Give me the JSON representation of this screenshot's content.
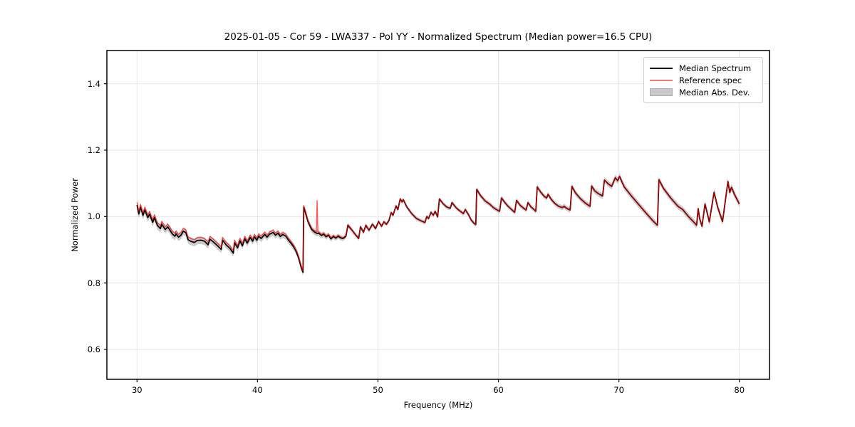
{
  "figure": {
    "title": "2025-01-05 - Cor 59 - LWA337 - Pol YY - Normalized Spectrum (Median power=16.5 CPU)"
  },
  "chart_data": {
    "type": "line",
    "title": "2025-01-05 - Cor 59 - LWA337 - Pol YY - Normalized Spectrum (Median power=16.5 CPU)",
    "xlabel": "Frequency (MHz)",
    "ylabel": "Normalized Power",
    "xlim": [
      27.5,
      82.5
    ],
    "ylim": [
      0.51,
      1.5
    ],
    "xticks": [
      30,
      40,
      50,
      60,
      70,
      80
    ],
    "yticks": [
      0.6,
      0.8,
      1.0,
      1.2,
      1.4
    ],
    "grid": true,
    "background": "#ffffff",
    "grid_color": "#e6e6e6",
    "legend_position": "upper right",
    "legend_items": [
      {
        "label": "Median Spectrum",
        "color": "#000000",
        "kind": "line"
      },
      {
        "label": "Reference spec",
        "color": "#f47a72",
        "kind": "line"
      },
      {
        "label": "Median Abs. Dev.",
        "color": "#c9c9c9",
        "kind": "patch"
      }
    ],
    "series": [
      {
        "name": "Median Spectrum",
        "color": "#000000",
        "points": [
          [
            30.0,
            1.035
          ],
          [
            30.15,
            1.008
          ],
          [
            30.3,
            1.028
          ],
          [
            30.5,
            1.004
          ],
          [
            30.65,
            1.02
          ],
          [
            30.9,
            0.997
          ],
          [
            31.05,
            1.007
          ],
          [
            31.3,
            0.983
          ],
          [
            31.45,
            0.997
          ],
          [
            31.7,
            0.973
          ],
          [
            31.95,
            0.964
          ],
          [
            32.05,
            0.977
          ],
          [
            32.35,
            0.961
          ],
          [
            32.55,
            0.969
          ],
          [
            32.95,
            0.947
          ],
          [
            33.15,
            0.941
          ],
          [
            33.25,
            0.948
          ],
          [
            33.45,
            0.938
          ],
          [
            33.65,
            0.944
          ],
          [
            33.85,
            0.956
          ],
          [
            34.05,
            0.952
          ],
          [
            34.25,
            0.93
          ],
          [
            34.45,
            0.926
          ],
          [
            34.75,
            0.922
          ],
          [
            35.0,
            0.928
          ],
          [
            35.3,
            0.929
          ],
          [
            35.6,
            0.926
          ],
          [
            35.9,
            0.915
          ],
          [
            36.05,
            0.932
          ],
          [
            36.3,
            0.925
          ],
          [
            36.6,
            0.915
          ],
          [
            37.0,
            0.901
          ],
          [
            37.1,
            0.929
          ],
          [
            37.4,
            0.915
          ],
          [
            37.7,
            0.905
          ],
          [
            38.0,
            0.89
          ],
          [
            38.1,
            0.921
          ],
          [
            38.35,
            0.906
          ],
          [
            38.55,
            0.927
          ],
          [
            38.75,
            0.912
          ],
          [
            38.95,
            0.933
          ],
          [
            39.15,
            0.92
          ],
          [
            39.4,
            0.937
          ],
          [
            39.6,
            0.926
          ],
          [
            39.75,
            0.939
          ],
          [
            39.95,
            0.929
          ],
          [
            40.1,
            0.941
          ],
          [
            40.3,
            0.934
          ],
          [
            40.6,
            0.946
          ],
          [
            40.8,
            0.938
          ],
          [
            41.0,
            0.947
          ],
          [
            41.3,
            0.952
          ],
          [
            41.5,
            0.944
          ],
          [
            41.7,
            0.95
          ],
          [
            41.9,
            0.94
          ],
          [
            42.1,
            0.946
          ],
          [
            42.35,
            0.941
          ],
          [
            42.6,
            0.928
          ],
          [
            42.8,
            0.919
          ],
          [
            43.0,
            0.909
          ],
          [
            43.2,
            0.896
          ],
          [
            43.4,
            0.877
          ],
          [
            43.62,
            0.848
          ],
          [
            43.78,
            0.832
          ],
          [
            43.84,
            1.028
          ],
          [
            44.0,
            1.01
          ],
          [
            44.2,
            0.984
          ],
          [
            44.5,
            0.961
          ],
          [
            44.75,
            0.953
          ],
          [
            44.95,
            0.949
          ],
          [
            45.1,
            0.95
          ],
          [
            45.3,
            0.943
          ],
          [
            45.5,
            0.947
          ],
          [
            45.7,
            0.939
          ],
          [
            45.9,
            0.944
          ],
          [
            46.1,
            0.933
          ],
          [
            46.3,
            0.94
          ],
          [
            46.5,
            0.935
          ],
          [
            46.7,
            0.941
          ],
          [
            46.9,
            0.936
          ],
          [
            47.1,
            0.934
          ],
          [
            47.35,
            0.941
          ],
          [
            47.5,
            0.974
          ],
          [
            47.8,
            0.961
          ],
          [
            48.1,
            0.947
          ],
          [
            48.4,
            0.934
          ],
          [
            48.55,
            0.969
          ],
          [
            48.8,
            0.953
          ],
          [
            49.0,
            0.974
          ],
          [
            49.25,
            0.959
          ],
          [
            49.55,
            0.977
          ],
          [
            49.8,
            0.964
          ],
          [
            50.05,
            0.985
          ],
          [
            50.3,
            0.971
          ],
          [
            50.5,
            0.984
          ],
          [
            50.7,
            0.977
          ],
          [
            50.9,
            0.987
          ],
          [
            51.1,
            1.012
          ],
          [
            51.25,
            1.004
          ],
          [
            51.5,
            1.032
          ],
          [
            51.65,
            1.021
          ],
          [
            51.85,
            1.053
          ],
          [
            52.0,
            1.044
          ],
          [
            52.1,
            1.051
          ],
          [
            52.4,
            1.029
          ],
          [
            52.8,
            1.009
          ],
          [
            53.2,
            0.994
          ],
          [
            53.6,
            0.987
          ],
          [
            53.9,
            0.982
          ],
          [
            54.05,
            1.0
          ],
          [
            54.2,
            0.994
          ],
          [
            54.4,
            1.013
          ],
          [
            54.6,
            1.004
          ],
          [
            54.75,
            1.016
          ],
          [
            54.95,
            0.999
          ],
          [
            55.1,
            1.053
          ],
          [
            55.4,
            1.039
          ],
          [
            55.7,
            1.029
          ],
          [
            56.0,
            1.025
          ],
          [
            56.15,
            1.042
          ],
          [
            56.5,
            1.026
          ],
          [
            56.8,
            1.017
          ],
          [
            57.1,
            1.009
          ],
          [
            57.25,
            1.021
          ],
          [
            57.5,
            1.007
          ],
          [
            57.75,
            0.989
          ],
          [
            58.0,
            0.979
          ],
          [
            58.12,
            0.976
          ],
          [
            58.2,
            1.082
          ],
          [
            58.5,
            1.064
          ],
          [
            58.9,
            1.047
          ],
          [
            59.3,
            1.037
          ],
          [
            59.55,
            1.028
          ],
          [
            59.8,
            1.022
          ],
          [
            60.1,
            1.016
          ],
          [
            60.25,
            1.056
          ],
          [
            60.5,
            1.044
          ],
          [
            60.8,
            1.031
          ],
          [
            61.1,
            1.021
          ],
          [
            61.35,
            1.013
          ],
          [
            61.5,
            1.049
          ],
          [
            61.8,
            1.034
          ],
          [
            62.1,
            1.025
          ],
          [
            62.3,
            1.02
          ],
          [
            62.45,
            1.042
          ],
          [
            62.7,
            1.029
          ],
          [
            62.9,
            1.023
          ],
          [
            63.1,
            1.016
          ],
          [
            63.22,
            1.089
          ],
          [
            63.5,
            1.074
          ],
          [
            63.8,
            1.061
          ],
          [
            64.0,
            1.056
          ],
          [
            64.12,
            1.067
          ],
          [
            64.4,
            1.051
          ],
          [
            64.7,
            1.039
          ],
          [
            65.0,
            1.031
          ],
          [
            65.3,
            1.027
          ],
          [
            65.45,
            1.031
          ],
          [
            65.7,
            1.024
          ],
          [
            65.95,
            1.02
          ],
          [
            66.1,
            1.091
          ],
          [
            66.4,
            1.071
          ],
          [
            66.8,
            1.054
          ],
          [
            67.2,
            1.041
          ],
          [
            67.6,
            1.031
          ],
          [
            67.73,
            1.092
          ],
          [
            68.0,
            1.077
          ],
          [
            68.35,
            1.068
          ],
          [
            68.65,
            1.062
          ],
          [
            68.8,
            1.11
          ],
          [
            69.1,
            1.099
          ],
          [
            69.4,
            1.091
          ],
          [
            69.7,
            1.117
          ],
          [
            69.9,
            1.108
          ],
          [
            70.05,
            1.121
          ],
          [
            70.45,
            1.089
          ],
          [
            71.0,
            1.064
          ],
          [
            71.6,
            1.038
          ],
          [
            72.2,
            1.013
          ],
          [
            72.8,
            0.988
          ],
          [
            73.2,
            0.974
          ],
          [
            73.32,
            1.111
          ],
          [
            73.7,
            1.085
          ],
          [
            74.3,
            1.056
          ],
          [
            74.9,
            1.031
          ],
          [
            75.3,
            1.021
          ],
          [
            75.8,
            0.999
          ],
          [
            76.2,
            0.984
          ],
          [
            76.45,
            0.974
          ],
          [
            76.58,
            1.024
          ],
          [
            76.7,
            0.994
          ],
          [
            76.9,
            0.971
          ],
          [
            77.15,
            1.038
          ],
          [
            77.35,
            1.008
          ],
          [
            77.5,
            0.984
          ],
          [
            77.9,
            1.073
          ],
          [
            78.2,
            1.028
          ],
          [
            78.6,
            0.985
          ],
          [
            79.05,
            1.106
          ],
          [
            79.2,
            1.073
          ],
          [
            79.35,
            1.088
          ],
          [
            79.6,
            1.066
          ],
          [
            80.0,
            1.038
          ]
        ]
      },
      {
        "name": "Reference spec",
        "color": "rgba(255,0,0,0.65)",
        "derived_from": "Median Spectrum",
        "offset_keypoints": [
          [
            30,
            0.008
          ],
          [
            36,
            0.008
          ],
          [
            40,
            0.007
          ],
          [
            43.8,
            0.005
          ],
          [
            44.0,
            0.004
          ],
          [
            47.0,
            0.003
          ],
          [
            48.0,
            0.0
          ],
          [
            80.0,
            0.0
          ]
        ],
        "spike": {
          "x": 44.95,
          "peak": 1.048,
          "width": 0.12
        }
      },
      {
        "name": "Median Abs. Dev.",
        "kind": "band",
        "color": "rgba(128,128,128,0.40)",
        "around": "Median Spectrum",
        "halfwidth_keypoints": [
          [
            30,
            0.013
          ],
          [
            34,
            0.012
          ],
          [
            38,
            0.011
          ],
          [
            43,
            0.01
          ],
          [
            44,
            0.01
          ],
          [
            46,
            0.008
          ],
          [
            48,
            0.007
          ],
          [
            52,
            0.006
          ],
          [
            56,
            0.006
          ],
          [
            58.5,
            0.007
          ],
          [
            63,
            0.007
          ],
          [
            66,
            0.008
          ],
          [
            69,
            0.009
          ],
          [
            70,
            0.01
          ],
          [
            73.5,
            0.009
          ],
          [
            77,
            0.01
          ],
          [
            79.2,
            0.011
          ],
          [
            80,
            0.01
          ]
        ]
      }
    ]
  }
}
